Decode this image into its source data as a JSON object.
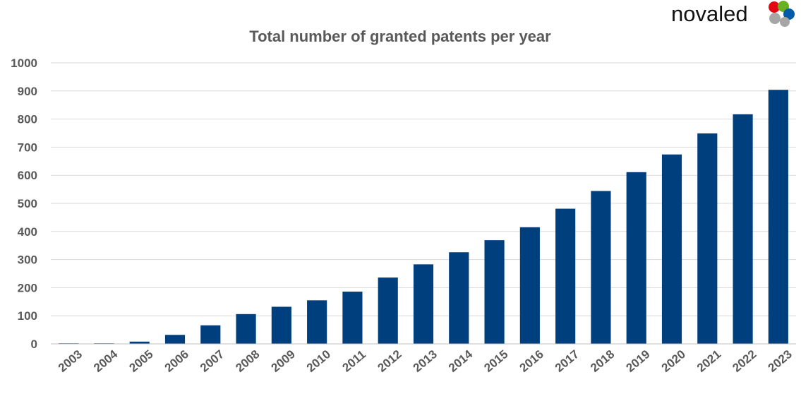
{
  "logo": {
    "text": "novaled",
    "colors": [
      "#e30613",
      "#6ab023",
      "#005ca9",
      "#a6a6a6"
    ]
  },
  "colors": {
    "bar": "#003f7d",
    "text": "#595959",
    "grid": "#d9d9d9"
  },
  "chart_data": {
    "type": "bar",
    "title": "Total number of granted patents per year",
    "xlabel": "",
    "ylabel": "",
    "categories": [
      "2003",
      "2004",
      "2005",
      "2006",
      "2007",
      "2008",
      "2009",
      "2010",
      "2011",
      "2012",
      "2013",
      "2014",
      "2015",
      "2016",
      "2017",
      "2018",
      "2019",
      "2020",
      "2021",
      "2022",
      "2023"
    ],
    "values": [
      1,
      1,
      8,
      32,
      66,
      106,
      132,
      155,
      186,
      236,
      283,
      326,
      369,
      415,
      481,
      544,
      611,
      674,
      749,
      817,
      904
    ],
    "ylim": [
      0,
      1000
    ],
    "yticks": [
      0,
      100,
      200,
      300,
      400,
      500,
      600,
      700,
      800,
      900,
      1000
    ],
    "grid": true,
    "legend": "none"
  }
}
